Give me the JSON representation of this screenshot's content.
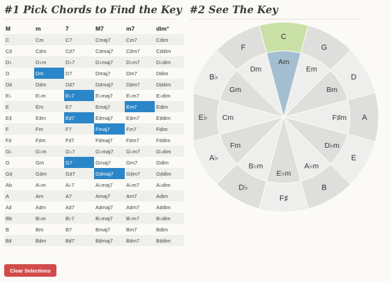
{
  "headings": {
    "pick": "#1 Pick Chords to Find the Key",
    "see": "#2 See The Key"
  },
  "table": {
    "columns": [
      "M",
      "m",
      "7",
      "M7",
      "m7",
      "dim°"
    ],
    "rows": [
      [
        "C",
        "Cm",
        "C7",
        "Cmaj7",
        "Cm7",
        "Cdim"
      ],
      [
        "C♯",
        "C♯m",
        "C♯7",
        "C♯maj7",
        "C♯m7",
        "C♯dim"
      ],
      [
        "D♭",
        "D♭m",
        "D♭7",
        "D♭maj7",
        "D♭m7",
        "D♭dim"
      ],
      [
        "D",
        "Dm",
        "D7",
        "Dmaj7",
        "Dm7",
        "Ddim"
      ],
      [
        "D♯",
        "D♯m",
        "D♯7",
        "D♯maj7",
        "D♯m7",
        "D♯dim"
      ],
      [
        "E♭",
        "E♭m",
        "E♭7",
        "E♭maj7",
        "E♭m7",
        "E♭dim"
      ],
      [
        "E",
        "Em",
        "E7",
        "Emaj7",
        "Em7",
        "Edim"
      ],
      [
        "E♯",
        "E♯m",
        "E♯7",
        "E♯maj7",
        "E♯m7",
        "E♯dim"
      ],
      [
        "F",
        "Fm",
        "F7",
        "Fmaj7",
        "Fm7",
        "Fdim"
      ],
      [
        "F♯",
        "F♯m",
        "F♯7",
        "F♯maj7",
        "F♯m7",
        "F♯dim"
      ],
      [
        "G♭",
        "G♭m",
        "G♭7",
        "G♭maj7",
        "G♭m7",
        "G♭dim"
      ],
      [
        "G",
        "Gm",
        "G7",
        "Gmaj7",
        "Gm7",
        "Gdim"
      ],
      [
        "G♯",
        "G♯m",
        "G♯7",
        "G♯maj7",
        "G♯m7",
        "G♯dim"
      ],
      [
        "Ab",
        "A♭m",
        "A♭7",
        "A♭maj7",
        "A♭m7",
        "A♭dim"
      ],
      [
        "A",
        "Am",
        "A7",
        "Amaj7",
        "Am7",
        "Adim"
      ],
      [
        "A♯",
        "A♯m",
        "A♯7",
        "A♯maj7",
        "A♯m7",
        "A♯dim"
      ],
      [
        "Bb",
        "B♭m",
        "B♭7",
        "B♭maj7",
        "B♭m7",
        "B♭dim"
      ],
      [
        "B",
        "Bm",
        "B7",
        "Bmaj7",
        "Bm7",
        "Bdim"
      ],
      [
        "B♯",
        "B♯m",
        "B♯7",
        "B♯maj7",
        "B♯m7",
        "B♯dim"
      ]
    ],
    "selected": [
      [
        3,
        1
      ],
      [
        5,
        2
      ],
      [
        6,
        4
      ],
      [
        7,
        2
      ],
      [
        8,
        3
      ],
      [
        11,
        2
      ],
      [
        12,
        3
      ]
    ]
  },
  "clear_button": "Clear Selections",
  "wheel": {
    "major": [
      "C",
      "G",
      "D",
      "A",
      "E",
      "B",
      "F♯",
      "D♭",
      "A♭",
      "E♭",
      "B♭",
      "F"
    ],
    "minor": [
      "Am",
      "Em",
      "Bm",
      "F♯m",
      "D♭m",
      "A♭m",
      "E♭m",
      "B♭m",
      "Fm",
      "Cm",
      "Gm",
      "Dm"
    ],
    "highlight_major_index": 0,
    "highlight_minor_index": 0
  },
  "colors": {
    "selected_chord": "#2a86c8",
    "wheel_light": "#eeeeec",
    "wheel_dark": "#dededc",
    "highlight_major": "#c9e0a6",
    "highlight_minor": "#a5bfd2",
    "clear_button": "#d24b4b"
  }
}
